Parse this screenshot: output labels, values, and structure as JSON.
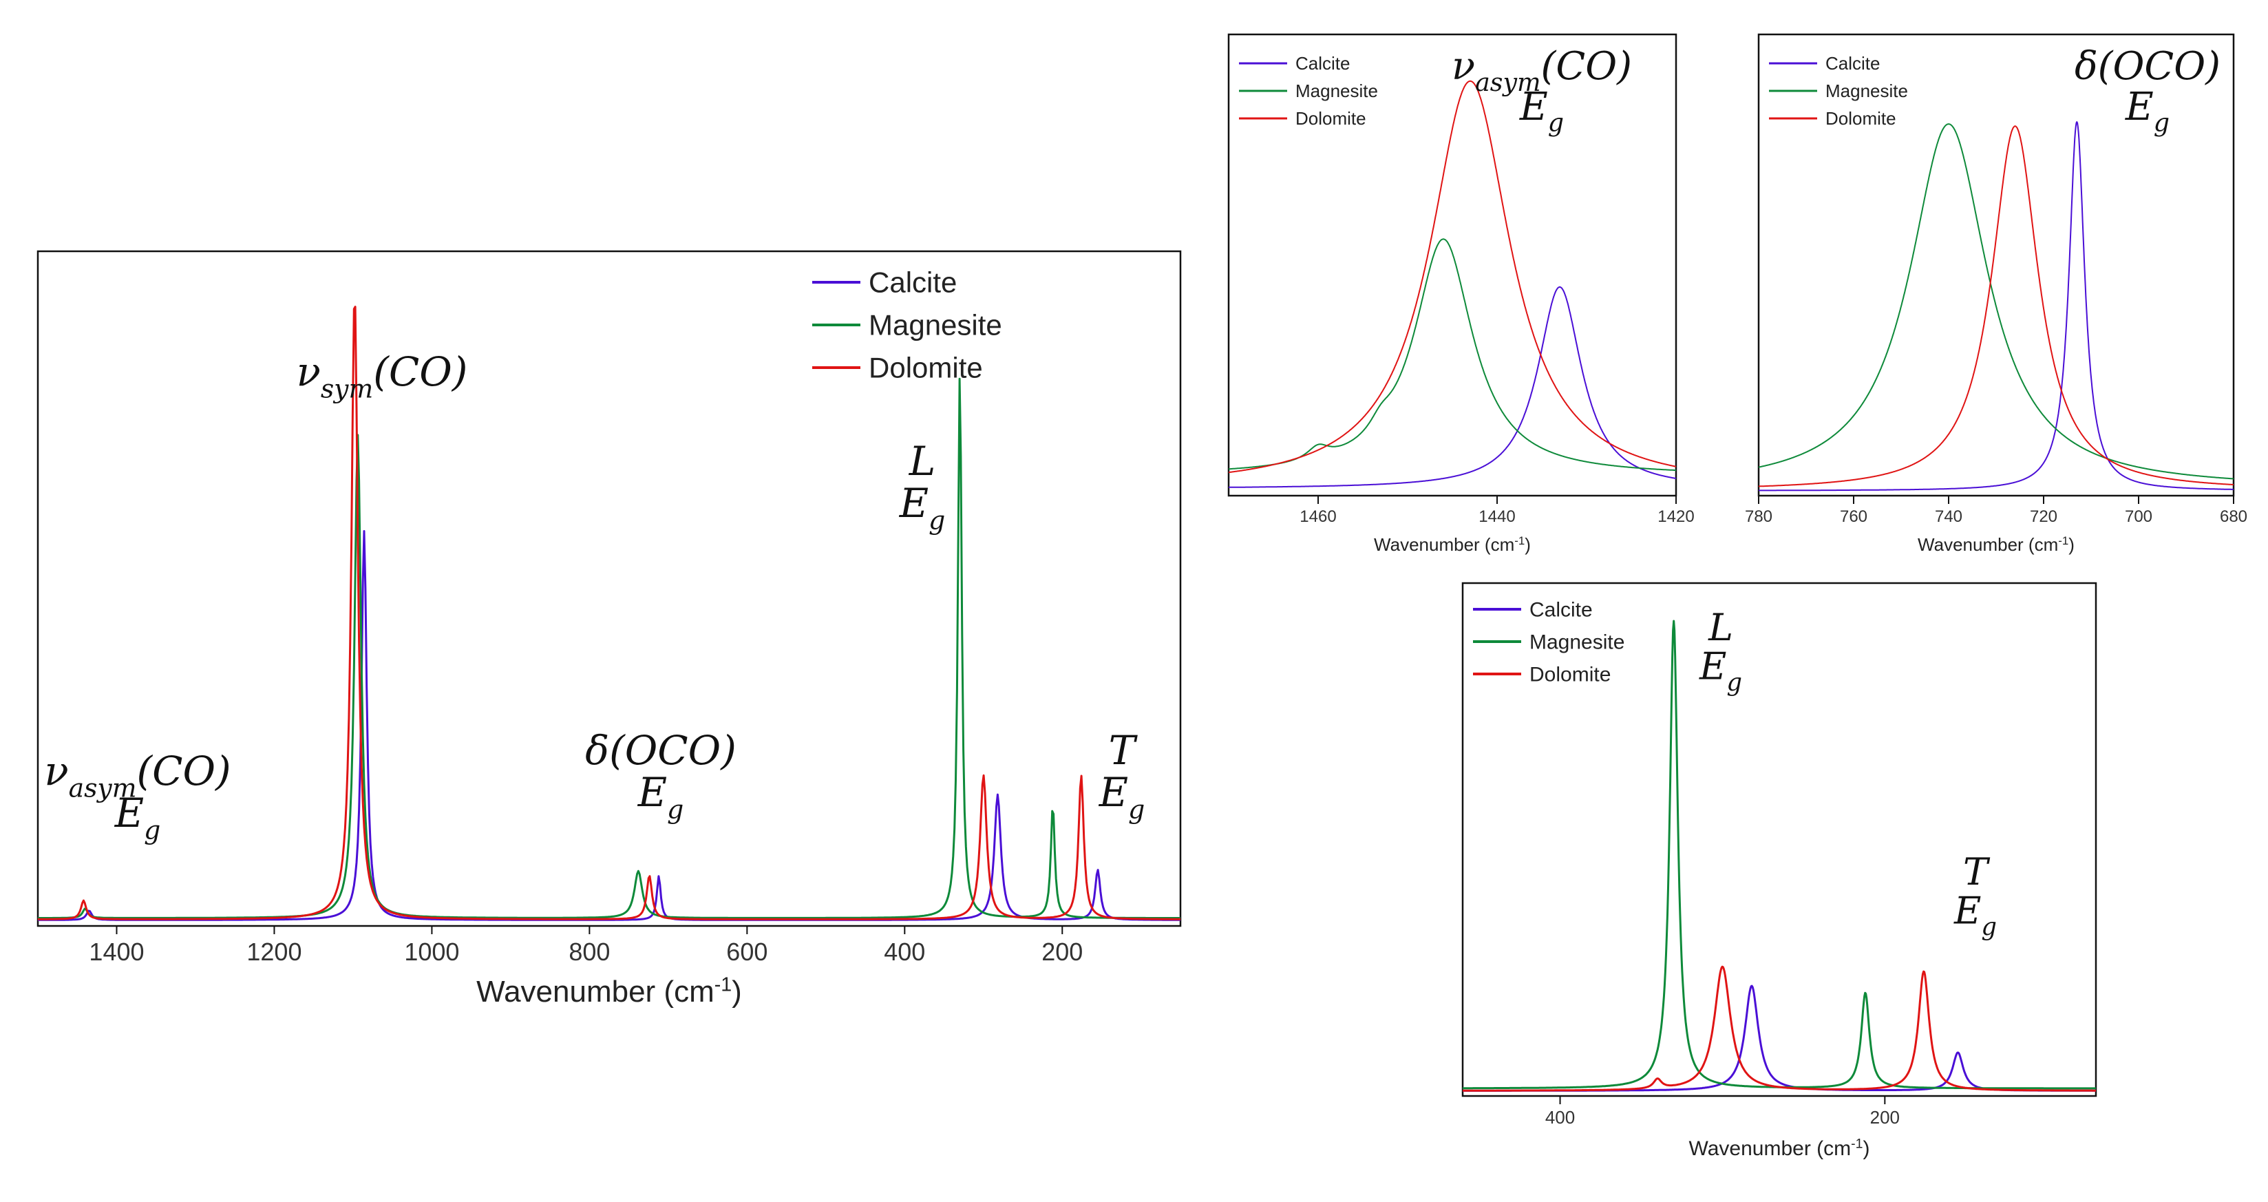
{
  "colors": {
    "Calcite": "#4a0fd6",
    "Magnesite": "#0e8a3a",
    "Dolomite": "#e01414"
  },
  "chart_data": [
    {
      "id": "main",
      "type": "line",
      "xlabel": "Wavenumber (cm",
      "xlabel_sup": "-1",
      "xlabel_end": ")",
      "xlim": [
        1500,
        50
      ],
      "xticks": [
        "1400",
        "1200",
        "1000",
        "800",
        "600",
        "400",
        "200"
      ],
      "xtick_values": [
        1400,
        1200,
        1000,
        800,
        600,
        400,
        200
      ],
      "ylim": [
        0,
        1.0
      ],
      "legend": [
        "Calcite",
        "Magnesite",
        "Dolomite"
      ],
      "legend_position": "top-right",
      "series": [
        {
          "name": "Calcite",
          "peaks": [
            [
              1435,
              0.015,
              4
            ],
            [
              1086,
              0.62,
              4
            ],
            [
              712,
              0.07,
              3
            ],
            [
              282,
              0.2,
              5
            ],
            [
              155,
              0.08,
              4
            ]
          ],
          "base": 0.005
        },
        {
          "name": "Magnesite",
          "peaks": [
            [
              1440,
              0.015,
              4
            ],
            [
              1094,
              0.77,
              5
            ],
            [
              738,
              0.075,
              6
            ],
            [
              330,
              0.87,
              3
            ],
            [
              212,
              0.18,
              3
            ]
          ],
          "base": 0.008
        },
        {
          "name": "Dolomite",
          "peaks": [
            [
              1442,
              0.03,
              4
            ],
            [
              1098,
              1.0,
              5
            ],
            [
              724,
              0.07,
              4
            ],
            [
              300,
              0.23,
              5
            ],
            [
              176,
              0.23,
              4
            ]
          ],
          "base": 0.006
        }
      ],
      "annotations": [
        {
          "base": "ν",
          "sub": "asym",
          "rest": "(CO)",
          "line2": "E",
          "line2_sub": "g"
        },
        {
          "base": "ν",
          "sub": "sym",
          "rest": "(CO)"
        },
        {
          "base": "δ(OCO)",
          "line2": "E",
          "line2_sub": "g"
        },
        {
          "base": "L",
          "line2": "E",
          "line2_sub": "g"
        },
        {
          "base": "T",
          "line2": "E",
          "line2_sub": "g"
        }
      ]
    },
    {
      "id": "inset-asym",
      "type": "line",
      "xlabel": "Wavenumber (cm",
      "xlabel_sup": "-1",
      "xlabel_end": ")",
      "xlim": [
        1470,
        1420
      ],
      "xticks": [
        "1460",
        "1440",
        "1420"
      ],
      "xtick_values": [
        1460,
        1440,
        1420
      ],
      "ylim": [
        0,
        1.0
      ],
      "legend": [
        "Calcite",
        "Magnesite",
        "Dolomite"
      ],
      "legend_position": "top-left",
      "series": [
        {
          "name": "Calcite",
          "peaks": [
            [
              1433,
              0.47,
              3
            ]
          ],
          "base": 0.01
        },
        {
          "name": "Magnesite",
          "peaks": [
            [
              1446,
              0.55,
              4
            ],
            [
              1460,
              0.03,
              1.5
            ],
            [
              1453,
              0.03,
              1.5
            ]
          ],
          "base": 0.04
        },
        {
          "name": "Dolomite",
          "peaks": [
            [
              1443,
              0.95,
              5.5
            ]
          ],
          "base": 0.01
        }
      ],
      "annotations": [
        {
          "base": "ν",
          "sub": "asym",
          "rest": "(CO)",
          "line2": "E",
          "line2_sub": "g"
        }
      ]
    },
    {
      "id": "inset-oco",
      "type": "line",
      "xlabel": "Wavenumber (cm",
      "xlabel_sup": "-1",
      "xlabel_end": ")",
      "xlim": [
        780,
        680
      ],
      "xticks": [
        "780",
        "760",
        "740",
        "720",
        "700",
        "680"
      ],
      "xtick_values": [
        780,
        760,
        740,
        720,
        700,
        680
      ],
      "ylim": [
        0,
        1.0
      ],
      "legend": [
        "Calcite",
        "Magnesite",
        "Dolomite"
      ],
      "legend_position": "top-left",
      "series": [
        {
          "name": "Calcite",
          "peaks": [
            [
              713,
              0.86,
              2
            ]
          ],
          "base": 0.005
        },
        {
          "name": "Magnesite",
          "peaks": [
            [
              740,
              0.85,
              10
            ]
          ],
          "base": 0.01
        },
        {
          "name": "Dolomite",
          "peaks": [
            [
              726,
              0.85,
              6
            ]
          ],
          "base": 0.005
        }
      ],
      "annotations": [
        {
          "base": "δ(OCO)",
          "line2": "E",
          "line2_sub": "g"
        }
      ]
    },
    {
      "id": "inset-low",
      "type": "line",
      "xlabel": "Wavenumber (cm",
      "xlabel_sup": "-1",
      "xlabel_end": ")",
      "xlim": [
        460,
        70
      ],
      "xticks": [
        "400",
        "200"
      ],
      "xtick_values": [
        400,
        200
      ],
      "ylim": [
        0,
        1.0
      ],
      "legend": [
        "Calcite",
        "Magnesite",
        "Dolomite"
      ],
      "legend_position": "top-left",
      "series": [
        {
          "name": "Calcite",
          "peaks": [
            [
              282,
              0.22,
              5
            ],
            [
              155,
              0.08,
              4
            ]
          ],
          "base": 0.005
        },
        {
          "name": "Magnesite",
          "peaks": [
            [
              330,
              0.98,
              3
            ],
            [
              212,
              0.2,
              3
            ]
          ],
          "base": 0.01
        },
        {
          "name": "Dolomite",
          "peaks": [
            [
              300,
              0.26,
              6
            ],
            [
              176,
              0.25,
              4
            ],
            [
              340,
              0.02,
              3
            ]
          ],
          "base": 0.005
        }
      ],
      "annotations": [
        {
          "base": "L",
          "line2": "E",
          "line2_sub": "g"
        },
        {
          "base": "T",
          "line2": "E",
          "line2_sub": "g"
        }
      ]
    }
  ]
}
